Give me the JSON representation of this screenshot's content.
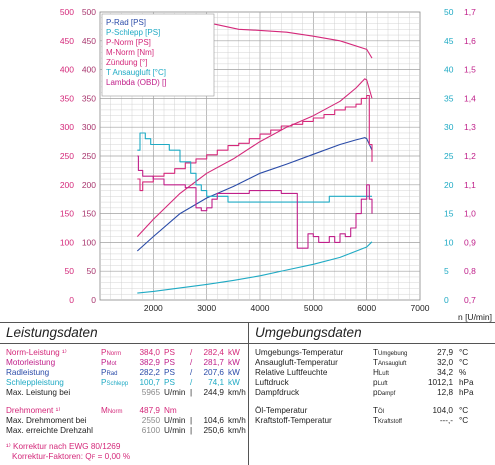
{
  "chart_data": {
    "type": "line",
    "x_range": [
      1000,
      7000
    ],
    "x_ticks": [
      "2000",
      "3000",
      "4000",
      "5000",
      "6000",
      "7000"
    ],
    "xlabel": "n [U/min]",
    "grid": true,
    "legend_position": "top-left",
    "left_axes": [
      {
        "ticks": [
          "0",
          "50",
          "100",
          "150",
          "200",
          "250",
          "300",
          "350",
          "400",
          "450",
          "500"
        ],
        "color": "#d4287a"
      },
      {
        "ticks": [
          "0",
          "50",
          "100",
          "150",
          "200",
          "250",
          "300",
          "350",
          "400",
          "450",
          "500"
        ],
        "color": "#a8366e"
      }
    ],
    "right_axes": [
      {
        "ticks": [
          "",
          "",
          "",
          "",
          "",
          "",
          "",
          "",
          "",
          "",
          ""
        ],
        "color": "#d4287a"
      },
      {
        "ticks": [
          "0",
          "5",
          "10",
          "15",
          "20",
          "25",
          "30",
          "35",
          "40",
          "45",
          "50"
        ],
        "color": "#1faac4"
      },
      {
        "ticks": [
          "0,7",
          "0,8",
          "0,9",
          "1,0",
          "1,1",
          "1,2",
          "1,3",
          "1,4",
          "1,5",
          "1,6",
          "1,7"
        ],
        "color": "#c0208a"
      }
    ],
    "legend": [
      {
        "label": "P-Rad [PS]",
        "color": "#2a4ba8"
      },
      {
        "label": "P-Schlepp [PS]",
        "color": "#1faac4"
      },
      {
        "label": "P-Norm [PS]",
        "color": "#d4287a"
      },
      {
        "label": "M-Norm [Nm]",
        "color": "#d4287a"
      },
      {
        "label": "Zündung [°]",
        "color": "#d4287a"
      },
      {
        "label": "T Ansaugluft [°C]",
        "color": "#1faac4"
      },
      {
        "label": "Lambda (OBD) []",
        "color": "#c0208a"
      }
    ],
    "series": [
      {
        "name": "P-Rad [PS]",
        "color": "#2a4ba8",
        "stepped": false,
        "x": [
          1700,
          2000,
          2500,
          3000,
          3500,
          4000,
          4500,
          5000,
          5500,
          5800,
          5965,
          6000,
          6100
        ],
        "y": [
          85,
          110,
          150,
          177,
          197,
          220,
          236,
          253,
          270,
          278,
          282,
          280,
          260
        ]
      },
      {
        "name": "P-Schlepp [PS]",
        "color": "#1faac4",
        "stepped": false,
        "x": [
          1700,
          2000,
          2500,
          3000,
          3500,
          4000,
          4500,
          5000,
          5500,
          6000,
          6100
        ],
        "y": [
          12,
          15,
          21,
          27,
          34,
          42,
          52,
          62,
          74,
          92,
          101
        ]
      },
      {
        "name": "P-Norm [PS]",
        "color": "#d4287a",
        "stepped": false,
        "x": [
          1700,
          2000,
          2500,
          3000,
          3500,
          4000,
          4500,
          5000,
          5500,
          5800,
          5965,
          6000,
          6100
        ],
        "y": [
          110,
          140,
          185,
          220,
          245,
          275,
          300,
          320,
          345,
          368,
          384,
          382,
          350
        ]
      },
      {
        "name": "M-Norm [Nm]",
        "color": "#d4287a",
        "stepped": false,
        "x": [
          1700,
          1800,
          2000,
          2200,
          2550,
          2800,
          3200,
          3600,
          4000,
          4500,
          5000,
          5500,
          6000,
          6100
        ],
        "y": [
          390,
          420,
          460,
          478,
          488,
          485,
          478,
          470,
          468,
          465,
          458,
          450,
          435,
          420
        ]
      },
      {
        "name": "Zündung [°]",
        "color": "#d4287a",
        "stepped": true,
        "x": [
          1700,
          1750,
          1800,
          2000,
          2200,
          2400,
          2600,
          2800,
          3000,
          3200,
          3400,
          3600,
          3800,
          4000,
          4200,
          4400,
          4600,
          4800,
          5000,
          5200,
          5400,
          5600,
          5800,
          5900,
          6000,
          6050,
          6100
        ],
        "y": [
          210,
          190,
          205,
          215,
          220,
          228,
          238,
          245,
          252,
          260,
          268,
          272,
          280,
          288,
          295,
          302,
          305,
          310,
          316,
          322,
          330,
          335,
          340,
          350,
          355,
          270,
          240
        ]
      },
      {
        "name": "T Ansaugluft [°C]",
        "color": "#1faac4",
        "stepped": true,
        "x": [
          1700,
          1750,
          1850,
          1950,
          2100,
          2300,
          2500,
          2700,
          2800,
          2900,
          3000,
          3200,
          3400,
          3600,
          3800,
          4000,
          4500,
          5000,
          5300,
          5500,
          6000,
          6100
        ],
        "y": [
          26,
          29,
          28,
          27,
          27,
          26,
          24,
          22,
          20,
          19,
          18,
          18,
          17,
          17,
          17,
          17,
          17,
          17,
          18,
          18,
          18,
          18
        ]
      },
      {
        "name": "Lambda (OBD) []",
        "color": "#c0208a",
        "stepped": true,
        "x": [
          1700,
          1720,
          1800,
          1900,
          2000,
          2100,
          2200,
          2400,
          2600,
          2800,
          2900,
          3000,
          3100,
          3200,
          3400,
          3600,
          3800,
          4000,
          4200,
          4400,
          4600,
          4700,
          4800,
          4900,
          5000,
          5100,
          5200,
          5300,
          5400,
          5500,
          5600,
          5700,
          5800,
          5900,
          6000,
          6050,
          6100
        ],
        "y": [
          1.2,
          1.15,
          1.13,
          1.13,
          1.12,
          1.12,
          1.1,
          1.1,
          1.09,
          1.02,
          1.01,
          1.02,
          1.05,
          1.07,
          1.07,
          1.07,
          1.08,
          1.08,
          1.08,
          1.07,
          1.07,
          0.88,
          0.88,
          0.93,
          0.92,
          0.9,
          0.9,
          0.92,
          0.9,
          0.93,
          0.92,
          0.95,
          1.0,
          1.05,
          1.1,
          1.05,
          1.0
        ]
      }
    ]
  },
  "performance": {
    "title": "Leistungsdaten",
    "rows": [
      {
        "label": "Norm-Leistung ¹⁾",
        "sym": "P",
        "sub": "Norm",
        "v1": "384,0",
        "u1": "PS",
        "sep": "/",
        "v2": "282,4",
        "u2": "kW",
        "color": "pink"
      },
      {
        "label": "Motorleistung",
        "sym": "P",
        "sub": "Mot",
        "v1": "382,9",
        "u1": "PS",
        "sep": "/",
        "v2": "281,7",
        "u2": "kW",
        "color": "mag"
      },
      {
        "label": "Radleistung",
        "sym": "P",
        "sub": "Rad",
        "v1": "282,2",
        "u1": "PS",
        "sep": "/",
        "v2": "207,6",
        "u2": "kW",
        "color": "blue"
      },
      {
        "label": "Schleppleistung",
        "sym": "P",
        "sub": "Schlepp",
        "v1": "100,7",
        "u1": "PS",
        "sep": "/",
        "v2": "74,1",
        "u2": "kW",
        "color": "cyan"
      },
      {
        "label": "Max. Leistung bei",
        "sym": "",
        "sub": "",
        "v1": "5965",
        "u1": "U/min",
        "sep": "|",
        "v2": "244,9",
        "u2": "km/h",
        "color": "dark",
        "v1grey": true
      },
      {
        "label": "Drehmoment ¹⁾",
        "sym": "M",
        "sub": "Norm",
        "v1": "487,9",
        "u1": "Nm",
        "sep": "",
        "v2": "",
        "u2": "",
        "color": "pink"
      },
      {
        "label": "Max. Drehmoment bei",
        "sym": "",
        "sub": "",
        "v1": "2550",
        "u1": "U/min",
        "sep": "|",
        "v2": "104,6",
        "u2": "km/h",
        "color": "dark",
        "v1grey": true
      },
      {
        "label": "Max. erreichte Drehzahl",
        "sym": "",
        "sub": "",
        "v1": "6100",
        "u1": "U/min",
        "sep": "|",
        "v2": "250,6",
        "u2": "km/h",
        "color": "dark",
        "v1grey": true
      }
    ],
    "footnote1": "¹⁾ Korrektur nach EWG 80/1269",
    "footnote2": "Korrektur-Faktoren: Q",
    "footnote2_sub": "F",
    "footnote2_value": "=   0,00 %"
  },
  "environment": {
    "title": "Umgebungsdaten",
    "rows": [
      {
        "label": "Umgebungs-Temperatur",
        "sym": "T",
        "sub": "Umgebung",
        "value": "27,9",
        "unit": "°C"
      },
      {
        "label": "Ansaugluft-Temperatur",
        "sym": "T",
        "sub": "Ansaugluft",
        "value": "32,0",
        "unit": "°C"
      },
      {
        "label": "Relative Luftfeuchte",
        "sym": "H",
        "sub": "Luft",
        "value": "34,2",
        "unit": "%"
      },
      {
        "label": "Luftdruck",
        "sym": "p",
        "sub": "Luft",
        "value": "1012,1",
        "unit": "hPa"
      },
      {
        "label": "Dampfdruck",
        "sym": "p",
        "sub": "Dampf",
        "value": "12,8",
        "unit": "hPa"
      },
      {
        "label": "Öl-Temperatur",
        "sym": "T",
        "sub": "Öl",
        "value": "104,0",
        "unit": "°C"
      },
      {
        "label": "Kraftstoff-Temperatur",
        "sym": "T",
        "sub": "Kraftstoff",
        "value": "---,-",
        "unit": "°C"
      }
    ]
  }
}
